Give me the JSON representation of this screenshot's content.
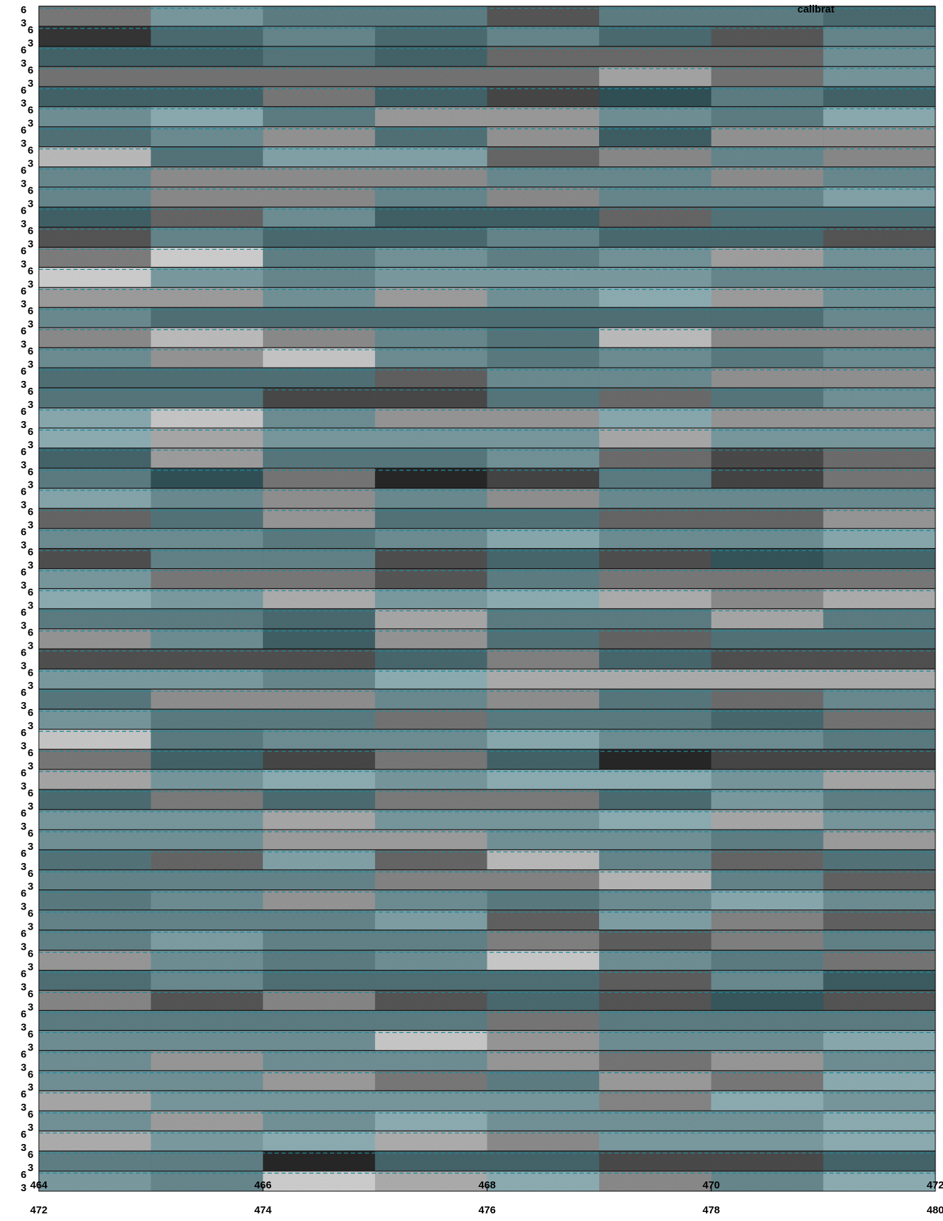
{
  "chart_data": {
    "type": "image-strips",
    "annotation": "calibrat",
    "xlim": [
      472,
      480
    ],
    "xticks": [
      472,
      474,
      476,
      478,
      480
    ],
    "x2lim": [
      464,
      472
    ],
    "x2ticks": [
      464,
      466,
      468,
      470,
      472
    ],
    "row_ticks": [
      3,
      6
    ]
  }
}
